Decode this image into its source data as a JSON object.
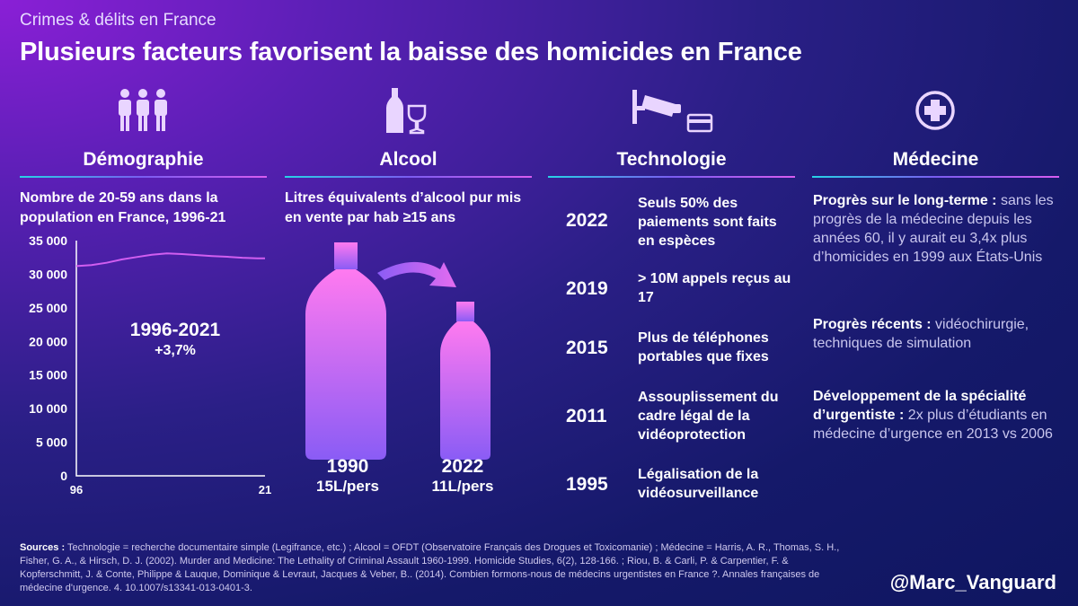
{
  "header": {
    "kicker": "Crimes & délits en France",
    "title": "Plusieurs facteurs favorisent la baisse des homicides en France"
  },
  "columns": {
    "demo": {
      "title": "Démographie",
      "icon": "people-icon"
    },
    "alcool": {
      "title": "Alcool",
      "icon": "wine-icon"
    },
    "tech": {
      "title": "Technologie",
      "icon": "camera-card-icon"
    },
    "med": {
      "title": "Médecine",
      "icon": "medical-cross-icon"
    }
  },
  "demographie": {
    "subtitle": "Nombre de 20-59 ans dans la population en France, 1996-21",
    "annotation_period": "1996-2021",
    "annotation_change": "+3,7%"
  },
  "chart_data": {
    "type": "line",
    "title": "Nombre de 20-59 ans dans la population en France, 1996-21",
    "x": [
      1996,
      1998,
      2000,
      2002,
      2004,
      2006,
      2008,
      2010,
      2012,
      2014,
      2016,
      2018,
      2020,
      2021
    ],
    "series": [
      {
        "values": [
          31200,
          31350,
          31700,
          32200,
          32550,
          32900,
          33100,
          33000,
          32850,
          32700,
          32600,
          32450,
          32350,
          32350
        ]
      }
    ],
    "ylim": [
      0,
      35000
    ],
    "yticks": [
      "35 000",
      "30 000",
      "25 000",
      "20 000",
      "15 000",
      "10 000",
      "5 000",
      "0"
    ],
    "ytick_values": [
      35000,
      30000,
      25000,
      20000,
      15000,
      10000,
      5000,
      0
    ],
    "xtick_labels": [
      "96",
      "21"
    ],
    "xlim": [
      1996,
      2021
    ],
    "line_color": "#d15ef0"
  },
  "alcool": {
    "subtitle": "Litres équivalents d’alcool pur mis en vente par hab ≥15 ans",
    "years": [
      "1990",
      "2022"
    ],
    "values": [
      "15L/pers",
      "11L/pers"
    ],
    "litres": [
      15,
      11
    ]
  },
  "technologie": {
    "items": [
      {
        "year": "2022",
        "text": "Seuls 50% des paiements sont faits en espèces"
      },
      {
        "year": "2019",
        "text": "> 10M appels reçus au 17"
      },
      {
        "year": "2015",
        "text": "Plus de téléphones portables que fixes"
      },
      {
        "year": "2011",
        "text": "Assouplissement du cadre légal de la vidéoprotection"
      },
      {
        "year": "1995",
        "text": "Légalisation de la vidéosurveillance"
      }
    ]
  },
  "medecine": {
    "items": [
      {
        "lead": "Progrès sur le long-terme :",
        "text": " sans les progrès de la médecine depuis les années 60, il y aurait eu 3,4x plus d’homicides en 1999 aux États-Unis"
      },
      {
        "lead": "Progrès récents :",
        "text": " vidéochirurgie, techniques de simulation"
      },
      {
        "lead": "Développement de la spécialité d’urgentiste :",
        "text": " 2x plus d’étudiants en médecine d’urgence en 2013 vs 2006"
      }
    ]
  },
  "footer": {
    "sources_lead": "Sources :",
    "sources_text": " Technologie = recherche documentaire simple (Legifrance, etc.) ; Alcool = OFDT (Observatoire Français des Drogues et Toxicomanie) ; Médecine = Harris, A. R., Thomas, S. H., Fisher, G. A., & Hirsch, D. J. (2002). Murder and Medicine: The Lethality of Criminal Assault 1960-1999. Homicide Studies, 6(2), 128-166. ; Riou, B. & Carli, P. & Carpentier, F. & Kopferschmitt, J. & Conte, Philippe & Lauque, Dominique & Levraut, Jacques & Veber, B.. (2014). Combien formons-nous de médecins urgentistes en France ?. Annales françaises de médecine d'urgence. 4. 10.1007/s13341-013-0401-3.",
    "handle": "@Marc_Vanguard"
  },
  "colors": {
    "accent_cyan": "#27d3e6",
    "accent_pink": "#d85cf0",
    "bottle_top": "#ff77f0",
    "bottle_bottom": "#8a5cf5"
  }
}
